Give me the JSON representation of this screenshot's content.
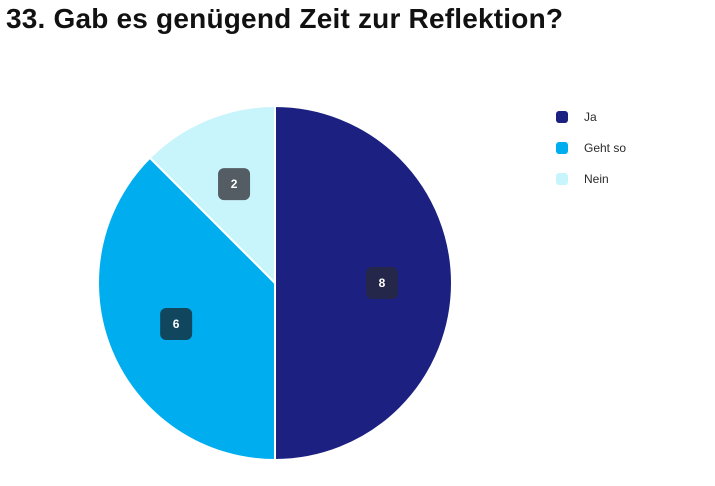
{
  "title": "33. Gab es genügend Zeit zur Reflektion?",
  "chart_data": {
    "type": "pie",
    "title": "33. Gab es genügend Zeit zur Reflektion?",
    "slices": [
      {
        "label": "Ja",
        "value": 8,
        "color": "#1c2080",
        "label_bg": "#24264a"
      },
      {
        "label": "Geht so",
        "value": 6,
        "color": "#00aeef",
        "label_bg": "#10475f"
      },
      {
        "label": "Nein",
        "value": 2,
        "color": "#c8f4fc",
        "label_bg": "#535d63"
      }
    ],
    "start": "12 o'clock",
    "direction": "clockwise",
    "legend_position": "right"
  },
  "legend": {
    "items": [
      {
        "label": "Ja",
        "color": "#1c2080"
      },
      {
        "label": "Geht so",
        "color": "#00aeef"
      },
      {
        "label": "Nein",
        "color": "#c8f4fc"
      }
    ]
  }
}
